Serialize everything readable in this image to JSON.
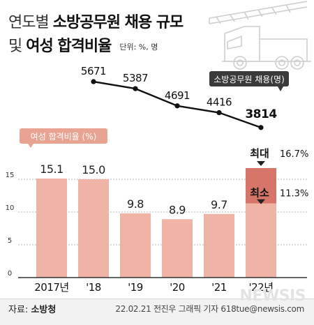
{
  "title": {
    "line1_light": "연도별",
    "line1_bold": "소방공무원 채용 규모",
    "line2_light": "및",
    "line2_bold": "여성 합격비율",
    "unit": "단위: %, 명"
  },
  "colors": {
    "bar": "#efb4a6",
    "bar_highlight_range": "#d8756b",
    "bar_label_bg": "#e9a393",
    "line": "#111111",
    "hire_label_bg": "#3a3a3a"
  },
  "chart_data": [
    {
      "type": "line",
      "legend_label": "소방공무원 채용(명)",
      "categories": [
        "2017년",
        "'18",
        "'19",
        "'20",
        "'21",
        "'22년"
      ],
      "series": [
        {
          "name": "소방공무원 채용(명)",
          "values": [
            null,
            5671,
            5387,
            4691,
            4416,
            3814
          ]
        }
      ]
    },
    {
      "type": "bar",
      "legend_label": "여성 합격비율 (%)",
      "categories": [
        "2017년",
        "'18",
        "'19",
        "'20",
        "'21",
        "'22년"
      ],
      "values": [
        15.1,
        15.0,
        9.8,
        8.9,
        9.7,
        null
      ],
      "value_labels": [
        "15.1",
        "15.0",
        "9.8",
        "8.9",
        "9.7",
        ""
      ],
      "range_2022": {
        "max_label": "최대",
        "max_value": 16.7,
        "max_text": "16.7%",
        "min_label": "최소",
        "min_value": 11.3,
        "min_text": "11.3%"
      },
      "y_ticks": [
        0,
        5,
        10,
        15
      ],
      "ylim": [
        0,
        17
      ],
      "grid": true
    }
  ],
  "footer": {
    "source_label": "자료:",
    "source_value": "소방청",
    "credit": "22.02.21 전진우 그래픽 기자 618tue@newsis.com",
    "watermark": "NEWSIS"
  }
}
